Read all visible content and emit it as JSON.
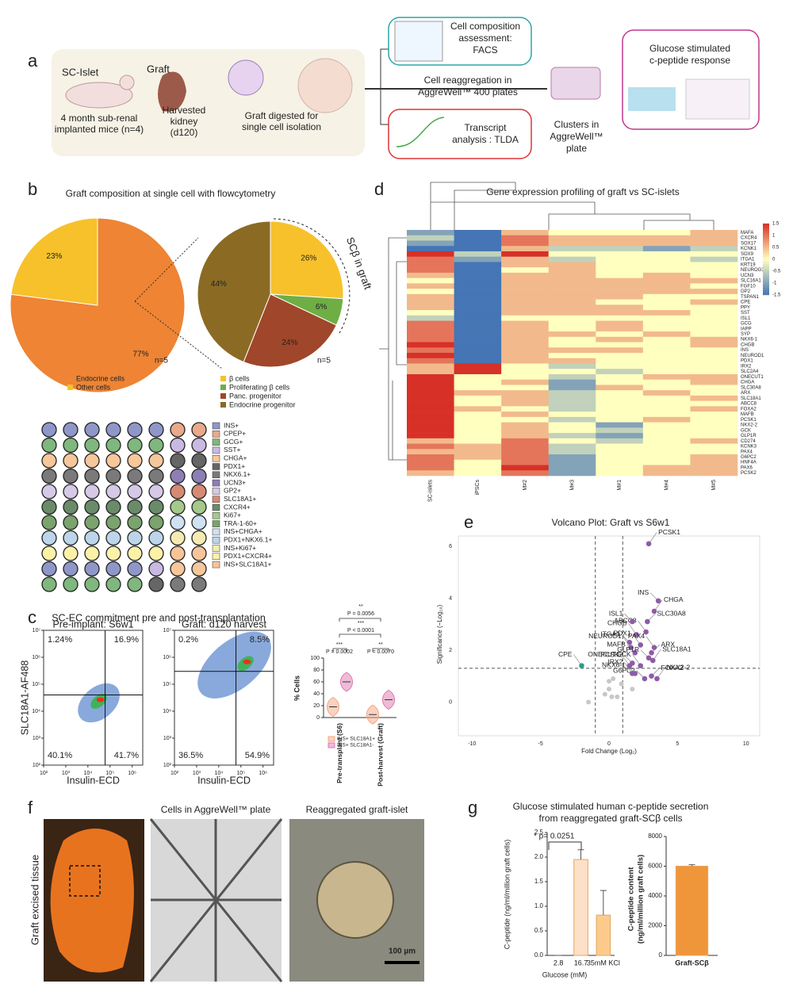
{
  "panel_a": {
    "letter": "a",
    "sc_islet": "SC-Islet",
    "mice": [
      "4 month sub-renal",
      "implanted mice (n=4)"
    ],
    "graft": "Graft",
    "kidney": [
      "Harvested",
      "kidney",
      "(d120)"
    ],
    "digest": [
      "Graft digested for",
      "single cell isolation"
    ],
    "facs": [
      "Cell composition",
      "assessment:",
      "FACS"
    ],
    "reagg": [
      "Cell reaggregation in",
      "AggreWell™ 400 plates"
    ],
    "tlda": [
      "Transcript",
      "analysis : TLDA"
    ],
    "clusters": [
      "Clusters in",
      "AggreWell™",
      "plate"
    ],
    "gsis": [
      "Glucose stimulated",
      "c-peptide response"
    ]
  },
  "panel_b": {
    "letter": "b",
    "title": "Graft composition at single cell with flowcytometry",
    "pie1": {
      "type": "pie",
      "categories": [
        "Endocrine cells",
        "Other cells"
      ],
      "values": [
        77,
        23
      ],
      "value_labels": [
        "77%",
        "23%"
      ],
      "colors": [
        "#ee8434",
        "#f7c12c"
      ],
      "n": "n=5"
    },
    "pie2": {
      "type": "pie",
      "categories": [
        "β cells",
        "Proliferating β cells",
        "Panc. progenitor",
        "Endocrine progenitor"
      ],
      "values": [
        26,
        6,
        24,
        44
      ],
      "value_labels": [
        "26%",
        "6%",
        "24%",
        "44%"
      ],
      "colors": [
        "#f7c12c",
        "#6fae45",
        "#a0462a",
        "#8b6b23"
      ],
      "n": "n=5",
      "arc_label": "SCβ in graft"
    },
    "markers": {
      "names": [
        "INS+",
        "CPEP+",
        "GCG+",
        "SST+",
        "CHGA+",
        "PDX1+",
        "NKX6.1+",
        "UCN3+",
        "GP2+",
        "SLC18A1+",
        "CXCR4+",
        "Ki67+",
        "TRA-1-60+",
        "INS+CHGA+",
        "PDX1+NKX6.1+",
        "INS+Ki67+",
        "PDX1+CXCR4+",
        "INS+SLC18A1+"
      ],
      "colors": [
        "#8f97c9",
        "#e9a98a",
        "#7fb77e",
        "#c9b9e2",
        "#f6c79b",
        "#666666",
        "#7a7a7a",
        "#8d7fb5",
        "#d5c9e7",
        "#d68a73",
        "#6a8b6a",
        "#a4c98a",
        "#7aa36e",
        "#cfe1f2",
        "#bcd5e8",
        "#f3ebb2",
        "#fdf1a8",
        "#f7c49a"
      ]
    }
  },
  "panel_c": {
    "letter": "c",
    "title": "SC-EC commitment pre and post-transplantation",
    "y_label": "SLC18A1-AF488",
    "x_label": "Insulin-ECD",
    "xscale": "log",
    "xlim": [
      100,
      3000000
    ],
    "ylim": [
      100,
      10000000
    ],
    "xticks": [
      {
        "value": 100,
        "label": "10²"
      },
      {
        "value": 1000,
        "label": "10³"
      },
      {
        "value": 10000,
        "label": "10⁴"
      },
      {
        "value": 100000,
        "label": "10⁵"
      },
      {
        "value": 1000000,
        "label": "10⁶"
      }
    ],
    "yticks": [
      {
        "value": 100,
        "label": "10²"
      },
      {
        "value": 1000,
        "label": "10³"
      },
      {
        "value": 10000,
        "label": "10⁴"
      },
      {
        "value": 100000,
        "label": "10⁵"
      },
      {
        "value": 1000000,
        "label": "10⁶"
      },
      {
        "value": 10000000,
        "label": "10⁷"
      }
    ],
    "plots": [
      {
        "title": "Pre-implant: S6w1",
        "quadrants": [
          "1.24%",
          "16.9%",
          "40.1%",
          "41.7%"
        ],
        "gate": [
          60000,
          40000
        ]
      },
      {
        "title": "Graft: d120 harvest",
        "quadrants": [
          "0.2%",
          "8.5%",
          "36.5%",
          "54.9%"
        ],
        "gate": [
          60000,
          300000
        ]
      }
    ],
    "violin": {
      "type": "violin",
      "y_label": "% Cells",
      "ylim": [
        0,
        100
      ],
      "yticks": [
        0,
        20,
        40,
        60,
        80,
        100
      ],
      "categories": [
        "Pre-transplant (S6)",
        "Post-harvest (Graft)"
      ],
      "series": [
        {
          "name": "INS+ SLC18A1+",
          "color": "#f4a582",
          "values": [
            18,
            5
          ]
        },
        {
          "name": "INS+ SLC18A1-",
          "color": "#de77ae",
          "values": [
            60,
            30
          ]
        }
      ],
      "annotations": [
        "***",
        "P = 0.0002",
        "**",
        "P = 0.0070",
        "***",
        "P < 0.0001",
        "**",
        "P = 0.0056"
      ]
    }
  },
  "panel_d": {
    "letter": "d",
    "title": "Gene expression profiling of graft vs SC-islets",
    "columns": [
      "SC-islets",
      "iPSCs",
      "M#2",
      "M#3",
      "M#1",
      "M#4",
      "M#5"
    ],
    "genes": [
      "MAFA",
      "CXCR4",
      "SOX17",
      "KCNK1",
      "SOX9",
      "ITGA1",
      "KRT19",
      "NEUROG3",
      "UCN3",
      "SLC16A1",
      "FGF10",
      "GP2",
      "TSPAN1",
      "CPE",
      "PPY",
      "SST",
      "ISL1",
      "GCG",
      "IAPP",
      "SYP",
      "NKX6-1",
      "CHGB",
      "INS",
      "NEUROD1",
      "PDX1",
      "IRX2",
      "SLC2A4",
      "ONECUT1",
      "CHGA",
      "SLC30A8",
      "ARX",
      "SLC18A1",
      "ABCC8",
      "FOXA2",
      "MAFB",
      "PCSK1",
      "NKX2-2",
      "GCK",
      "GLP1R",
      "CD274",
      "KCNK3",
      "PAX4",
      "G6PC2",
      "HNF4A",
      "PAX6",
      "PCSK2"
    ],
    "clim": [
      -1.5,
      1.5
    ],
    "cticks": [
      1.5,
      1,
      0.5,
      0,
      -0.5,
      -1,
      -1.5
    ],
    "values": [
      [
        -1,
        -1.5,
        0.5,
        0,
        0,
        0,
        0.5
      ],
      [
        -0.5,
        -1.5,
        1,
        0.5,
        0.5,
        0.5,
        0.5
      ],
      [
        -1,
        -1.5,
        1,
        0.5,
        0.5,
        0.5,
        0.5
      ],
      [
        -1.5,
        -1.5,
        0.5,
        -0.5,
        -0.5,
        -1,
        -0.5
      ],
      [
        1.5,
        -0.5,
        1.5,
        0,
        0,
        0,
        0
      ],
      [
        1,
        -1,
        0.5,
        -0.5,
        0,
        0,
        -0.5
      ],
      [
        1,
        -1.5,
        0.5,
        0.5,
        0,
        0,
        0
      ],
      [
        1,
        -1.5,
        0,
        0.5,
        0,
        0,
        0
      ],
      [
        0.5,
        -1.5,
        0.5,
        0.5,
        0,
        0.5,
        0
      ],
      [
        0,
        -1.5,
        0.5,
        0.5,
        0.5,
        0.5,
        0.5
      ],
      [
        0.5,
        -1.5,
        0.5,
        0.5,
        0.5,
        0.5,
        0
      ],
      [
        0,
        -1.5,
        0.5,
        0.5,
        0.5,
        0.5,
        0.5
      ],
      [
        0.5,
        -1.5,
        0.5,
        0.5,
        0.5,
        0,
        0
      ],
      [
        0.5,
        -1.5,
        0.5,
        0.5,
        0,
        0,
        0.5
      ],
      [
        0.5,
        -1.5,
        0.5,
        0.5,
        0.5,
        0,
        0
      ],
      [
        0,
        -1.5,
        0.5,
        0.5,
        0.5,
        0.5,
        0
      ],
      [
        -0.5,
        -1.5,
        0,
        0,
        0,
        0,
        0
      ],
      [
        1,
        -1.5,
        0.5,
        0,
        0.5,
        0,
        0
      ],
      [
        1,
        -1.5,
        0.5,
        0,
        0.5,
        0,
        0
      ],
      [
        1,
        -1.5,
        0.5,
        0.5,
        0,
        0.5,
        0
      ],
      [
        1,
        -1.5,
        0.5,
        0,
        0.5,
        0,
        0.5
      ],
      [
        1.5,
        -1.5,
        0.5,
        0,
        0,
        0,
        0.5
      ],
      [
        1,
        -1.5,
        0.5,
        0.5,
        0.5,
        0,
        0
      ],
      [
        1.5,
        -1.5,
        0.5,
        0,
        0,
        0,
        0
      ],
      [
        1,
        -1.5,
        0.5,
        0.5,
        0,
        0,
        0
      ],
      [
        0.5,
        1.5,
        0,
        -0.5,
        0,
        0,
        0
      ],
      [
        0.5,
        1.5,
        0,
        0,
        -0.5,
        0,
        0
      ],
      [
        1.5,
        0,
        0,
        -0.5,
        0,
        0.5,
        0.5
      ],
      [
        1.5,
        0,
        0.5,
        -1,
        0,
        0,
        0.5
      ],
      [
        1.5,
        0,
        0,
        -1,
        0.5,
        0,
        0
      ],
      [
        1.5,
        0.5,
        0.5,
        -0.5,
        0,
        0.5,
        0
      ],
      [
        1.5,
        0,
        0.5,
        -0.5,
        0,
        0,
        0.5
      ],
      [
        1.5,
        0,
        0.5,
        -0.5,
        0,
        0,
        0
      ],
      [
        1.5,
        0.5,
        0,
        -0.5,
        0,
        0,
        0.5
      ],
      [
        1.5,
        0,
        0.5,
        0,
        0,
        0,
        0
      ],
      [
        1.5,
        0,
        0,
        -0.5,
        0,
        0.5,
        0
      ],
      [
        1.5,
        0,
        0.5,
        0,
        -1,
        0,
        0
      ],
      [
        1.5,
        0,
        0.5,
        0,
        -0.5,
        0,
        0
      ],
      [
        1.5,
        0,
        0.5,
        -0.5,
        -1,
        0,
        0
      ],
      [
        0.5,
        0,
        1,
        0,
        -0.5,
        0,
        0.5
      ],
      [
        1,
        0.5,
        1,
        -0.5,
        0,
        0,
        0
      ],
      [
        0.5,
        0.5,
        1,
        -0.5,
        0,
        0,
        0
      ],
      [
        1,
        0.5,
        1,
        -1,
        0,
        0,
        0.5
      ],
      [
        1,
        0,
        1,
        -1,
        0,
        0,
        0.5
      ],
      [
        1,
        0,
        1.5,
        -1,
        0,
        0.5,
        0.5
      ],
      [
        0.5,
        0,
        1,
        -1,
        0,
        0.5,
        0.5
      ]
    ]
  },
  "panel_e": {
    "letter": "e",
    "type": "scatter",
    "title": "Volcano Plot: Graft vs S6w1",
    "x_label": "Fold Change (Log₂)",
    "y_label": "Significance (−Log₁₀)",
    "xlim": [
      -11,
      11
    ],
    "ylim": [
      -1.3,
      6.4
    ],
    "xticks": [
      -10,
      -5,
      0,
      5,
      10
    ],
    "yticks": [
      0,
      2,
      4,
      6
    ],
    "x_thresholds": [
      -1,
      1
    ],
    "y_threshold": 1.3,
    "labeled": {
      "color": "#8e5ba8",
      "names": [
        "PCSK1",
        "INS",
        "CHGA",
        "SLC30A8",
        "ABCC8",
        "ISL1",
        "CHGB",
        "ITGA1",
        "PDX1",
        "ARX",
        "PAX4",
        "MAFB",
        "NEUROD1",
        "GLP1R",
        "SLC18A1",
        "PCSK2",
        "GCK",
        "FOXA2",
        "NKX2-2",
        "G6PC2",
        "IRX2",
        "NKX6-1",
        "ONECUT1"
      ],
      "x": [
        2.9,
        3.6,
        3.3,
        2.8,
        2.7,
        1.7,
        2.0,
        1.5,
        2.3,
        3.1,
        3.3,
        1.9,
        1.6,
        2.9,
        3.2,
        1.7,
        2.3,
        3.1,
        3.5,
        2.6,
        1.7,
        1.9,
        1.5
      ],
      "y": [
        6.1,
        3.9,
        3.5,
        3.1,
        2.7,
        3.1,
        2.6,
        2.3,
        2.2,
        1.9,
        2.1,
        1.9,
        2.1,
        1.7,
        1.6,
        1.5,
        1.4,
        1.0,
        0.9,
        0.9,
        1.1,
        1.1,
        1.4
      ]
    },
    "down": {
      "color": "#2a9d8f",
      "names": [
        "CPE"
      ],
      "x": [
        -2.0
      ],
      "y": [
        1.4
      ]
    },
    "other": {
      "color": "#c8c8c8",
      "x": [
        0,
        0,
        0.2,
        -0.3,
        0.6,
        0.3,
        -1.5,
        1.7,
        0.9
      ],
      "y": [
        0.8,
        0.5,
        0.2,
        0.3,
        0.2,
        0.9,
        0,
        0.5,
        0.7
      ]
    }
  },
  "panel_f": {
    "letter": "f",
    "labels": [
      "Graft excised tissue",
      "Cells in AggreWell™ plate",
      "Reaggregated graft-islet"
    ],
    "scale_bar": "100 µm"
  },
  "panel_g": {
    "letter": "g",
    "title": [
      "Glucose stimulated human c-peptide secretion",
      "from reaggregated graft-SCβ cells"
    ],
    "chart1": {
      "type": "bar",
      "categories": [
        "2.8",
        "16.7",
        "35mM KCl"
      ],
      "values": [
        0,
        1.95,
        0.82
      ],
      "errors": [
        0,
        0.2,
        0.5
      ],
      "colors": [
        "#fde3cf",
        "#fde0c8",
        "#fccb8c"
      ],
      "ylim": [
        0,
        2.5
      ],
      "yticks": [
        {
          "value": 0,
          "label": "0.0"
        },
        {
          "value": 0.5,
          "label": "0.5"
        },
        {
          "value": 1,
          "label": "1.0"
        },
        {
          "value": 1.5,
          "label": "1.5"
        },
        {
          "value": 2,
          "label": "2.0"
        },
        {
          "value": 2.5,
          "label": "2.5"
        }
      ],
      "y_label": "C-peptide (ng/ml/million graft cells)",
      "x_label": "Glucose (mM)",
      "annotation": "* p= 0.0251"
    },
    "chart2": {
      "type": "bar",
      "categories": [
        "Graft-SCβ"
      ],
      "values": [
        6000
      ],
      "errors": [
        100
      ],
      "colors": [
        "#f0963a"
      ],
      "ylim": [
        0,
        8000
      ],
      "yticks": [
        0,
        2000,
        4000,
        6000,
        8000
      ],
      "y_label": [
        "C-peptide content",
        "(ng/ml/million graft cells)"
      ]
    }
  }
}
